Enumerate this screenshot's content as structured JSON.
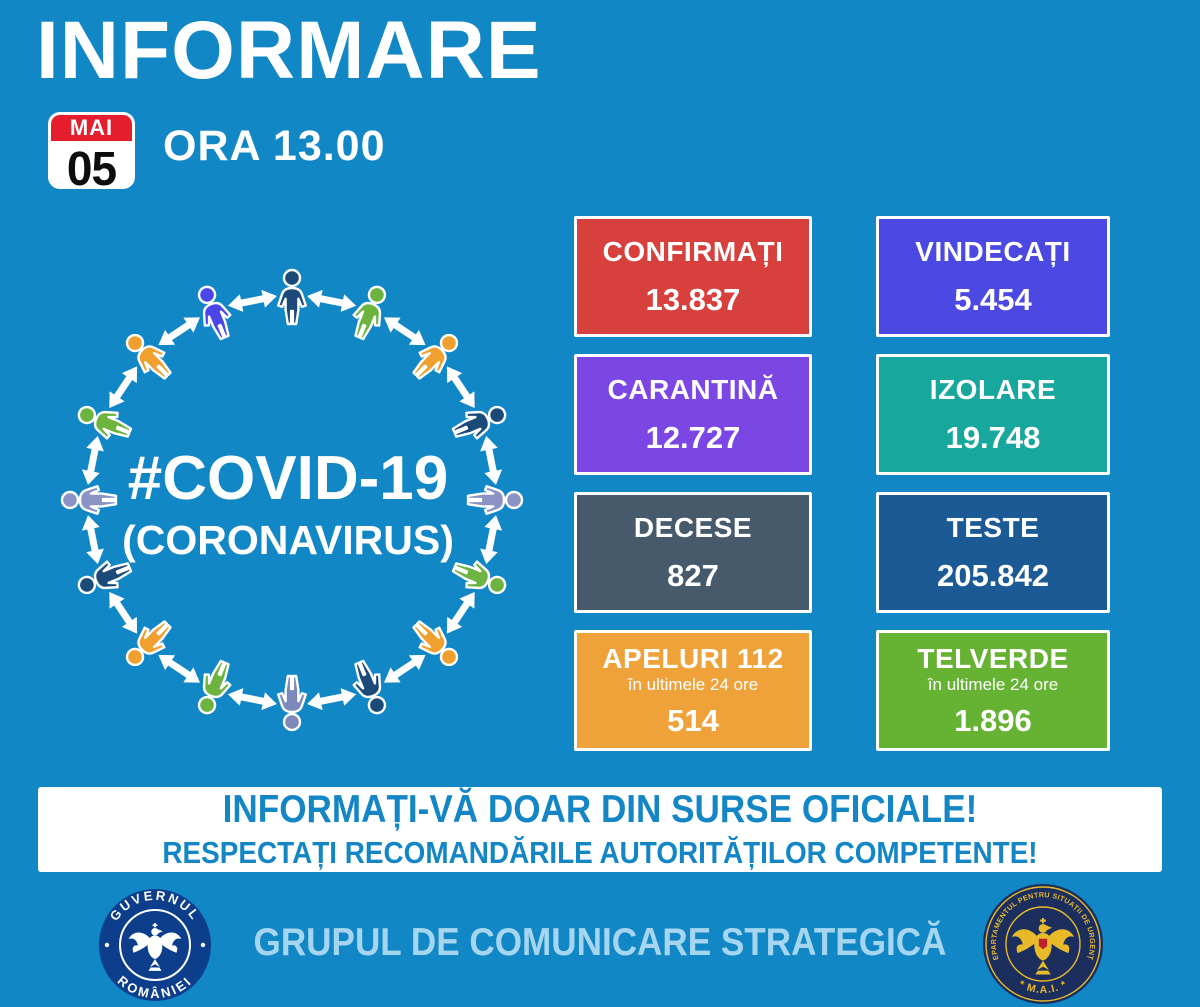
{
  "header": {
    "title": "INFORMARE",
    "date_month": "MAI",
    "date_day": "05",
    "time_label": "ORA 13.00"
  },
  "diagram": {
    "center_line1": "#COVID-19",
    "center_line2": "(CORONAVIRUS)",
    "people_colors": [
      "#1b4a78",
      "#6cb33f",
      "#f0a02f",
      "#1b4a78",
      "#8a93c4",
      "#6cb33f",
      "#f0a02f",
      "#1b4a78",
      "#7e88bb",
      "#6cb33f",
      "#f0a02f",
      "#1b4a78",
      "#8a93c4",
      "#6cb33f",
      "#f0a02f",
      "#4a46e8"
    ]
  },
  "stats": [
    {
      "id": "confirmati",
      "label": "CONFIRMAȚI",
      "subtitle": "",
      "value": "13.837",
      "color": "#d8403e"
    },
    {
      "id": "vindecati",
      "label": "VINDECAȚI",
      "subtitle": "",
      "value": "5.454",
      "color": "#4b49e2"
    },
    {
      "id": "carantina",
      "label": "CARANTINĂ",
      "subtitle": "",
      "value": "12.727",
      "color": "#7c46e4"
    },
    {
      "id": "izolare",
      "label": "IZOLARE",
      "subtitle": "",
      "value": "19.748",
      "color": "#17a79d"
    },
    {
      "id": "decese",
      "label": "DECESE",
      "subtitle": "",
      "value": "827",
      "color": "#465a6c"
    },
    {
      "id": "teste",
      "label": "TESTE",
      "subtitle": "",
      "value": "205.842",
      "color": "#1c5a95"
    },
    {
      "id": "apeluri-112",
      "label": "APELURI 112",
      "subtitle": "în ultimele 24 ore",
      "value": "514",
      "color": "#efa23a"
    },
    {
      "id": "telverde",
      "label": "TELVERDE",
      "subtitle": "în ultimele 24 ore",
      "value": "1.896",
      "color": "#66b233"
    }
  ],
  "banner": {
    "line1": "INFORMAȚI-VĂ DOAR DIN SURSE OFICIALE!",
    "line2": "RESPECTAȚI RECOMANDĂRILE AUTORITĂȚILOR COMPETENTE!"
  },
  "footer": {
    "text": "GRUPUL DE COMUNICARE STRATEGICĂ",
    "left_logo": {
      "top": "GUVERNUL",
      "bottom": "ROMÂNIEI"
    },
    "right_logo": {
      "around": "DEPARTAMENTUL PENTRU SITUAȚII DE URGENȚĂ",
      "bottom": "* M.A.I. *"
    }
  },
  "colors": {
    "background": "#1187c6",
    "banner_text": "#1486c6",
    "footer_text": "#a6d6ef",
    "calendar_red": "#e41e2d",
    "guvernul_blue": "#0c3e8c",
    "dsu_navy": "#1b2e5e",
    "dsu_gold": "#e8ba2a"
  }
}
